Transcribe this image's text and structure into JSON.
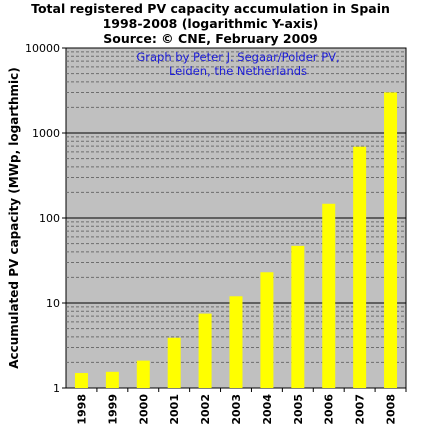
{
  "chart_data": {
    "type": "bar",
    "title_lines": [
      "Total registered PV capacity accumulation in Spain",
      "1998-2008 (logarithmic Y-axis)",
      "Source: © CNE, February 2009"
    ],
    "annotation_lines": [
      "Graph by Peter J. Segaar/Polder PV,",
      "Leiden, the Netherlands"
    ],
    "ylabel": "Accumulated PV capacity (MWp, logarthmic)",
    "xlabel": "",
    "y_scale": "log",
    "ylim": [
      1,
      10000
    ],
    "y_ticks": [
      1,
      10,
      100,
      1000,
      10000
    ],
    "y_tick_labels": [
      "1",
      "10",
      "100",
      "1000",
      "10000"
    ],
    "grid": "major and minor horizontal",
    "categories": [
      "1998",
      "1999",
      "2000",
      "2001",
      "2002",
      "2003",
      "2004",
      "2005",
      "2006",
      "2007",
      "2008"
    ],
    "values": [
      1.5,
      1.55,
      2.1,
      3.9,
      7.5,
      12,
      23,
      47,
      147,
      690,
      3000
    ],
    "colors": {
      "bar": "#ffff00",
      "plot_background": "#c0c0c0",
      "annotation_text": "#1c1cd8"
    }
  }
}
